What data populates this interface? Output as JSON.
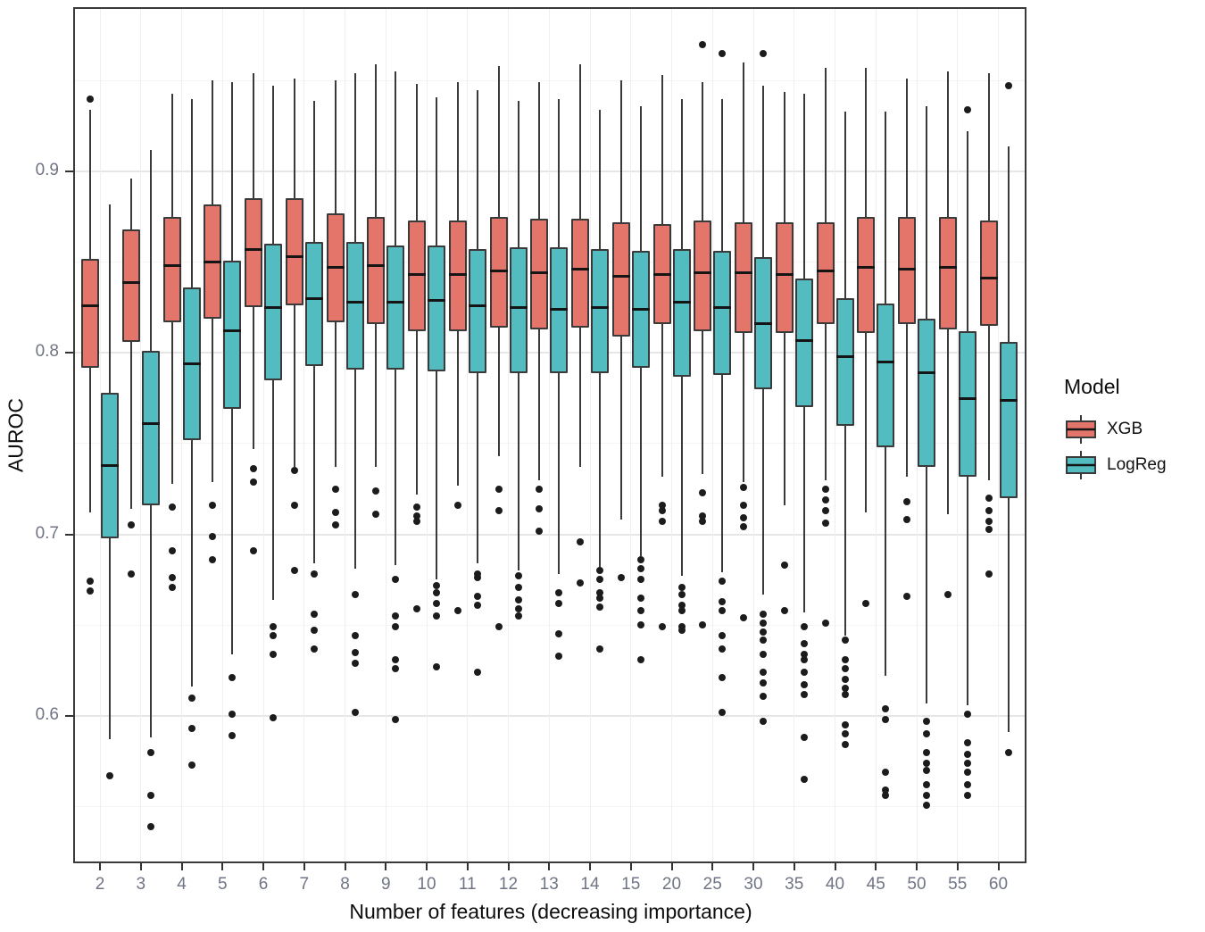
{
  "legend": {
    "title": "Model"
  },
  "colors": {
    "xgb_fill": "#E4756B",
    "logreg_fill": "#52BCC0",
    "box_border": "#3a3a3a",
    "median": "#151515",
    "outlier": "#1c1c1c",
    "grid_major": "#e6e6e6",
    "grid_minor": "#f4f4f4",
    "tick_text": "#6f7585",
    "title_text": "#0d0d0d"
  },
  "chart_data": {
    "type": "boxplot",
    "title": "",
    "xlabel": "Number of features (decreasing importance)",
    "ylabel": "AUROC",
    "ylim": [
      0.52,
      0.99
    ],
    "grid": true,
    "legend_position": "right",
    "y_major_ticks": [
      0.9,
      0.8,
      0.7,
      0.6
    ],
    "y_tick_labels": [
      "0.9",
      "0.8",
      "0.7",
      "0.6"
    ],
    "y_minor_gridlines": [
      0.95,
      0.85,
      0.75,
      0.65,
      0.55
    ],
    "categories": [
      "2",
      "3",
      "4",
      "5",
      "6",
      "7",
      "8",
      "9",
      "10",
      "11",
      "12",
      "13",
      "14",
      "15",
      "20",
      "25",
      "30",
      "35",
      "40",
      "45",
      "50",
      "55",
      "60"
    ],
    "series": [
      {
        "name": "XGB",
        "color": "#E4756B",
        "boxes": [
          {
            "lo": 0.712,
            "q1": 0.792,
            "med": 0.826,
            "q3": 0.852,
            "hi": 0.934,
            "out_lo": [
              0.674,
              0.669
            ],
            "out_hi": [
              0.94
            ]
          },
          {
            "lo": 0.714,
            "q1": 0.806,
            "med": 0.839,
            "q3": 0.868,
            "hi": 0.896,
            "out_lo": [
              0.705,
              0.678
            ],
            "out_hi": []
          },
          {
            "lo": 0.728,
            "q1": 0.817,
            "med": 0.848,
            "q3": 0.875,
            "hi": 0.943,
            "out_lo": [
              0.715,
              0.691,
              0.676,
              0.671
            ],
            "out_hi": []
          },
          {
            "lo": 0.729,
            "q1": 0.819,
            "med": 0.85,
            "q3": 0.882,
            "hi": 0.95,
            "out_lo": [
              0.716,
              0.699,
              0.686
            ],
            "out_hi": []
          },
          {
            "lo": 0.747,
            "q1": 0.825,
            "med": 0.857,
            "q3": 0.885,
            "hi": 0.954,
            "out_lo": [
              0.736,
              0.729,
              0.691
            ],
            "out_hi": []
          },
          {
            "lo": 0.737,
            "q1": 0.826,
            "med": 0.853,
            "q3": 0.885,
            "hi": 0.951,
            "out_lo": [
              0.735,
              0.716,
              0.68
            ],
            "out_hi": []
          },
          {
            "lo": 0.737,
            "q1": 0.817,
            "med": 0.847,
            "q3": 0.877,
            "hi": 0.95,
            "out_lo": [
              0.725,
              0.712,
              0.705
            ],
            "out_hi": []
          },
          {
            "lo": 0.737,
            "q1": 0.816,
            "med": 0.848,
            "q3": 0.875,
            "hi": 0.959,
            "out_lo": [
              0.724,
              0.711
            ],
            "out_hi": []
          },
          {
            "lo": 0.722,
            "q1": 0.812,
            "med": 0.843,
            "q3": 0.873,
            "hi": 0.948,
            "out_lo": [
              0.715,
              0.71,
              0.707,
              0.659
            ],
            "out_hi": []
          },
          {
            "lo": 0.727,
            "q1": 0.812,
            "med": 0.843,
            "q3": 0.873,
            "hi": 0.949,
            "out_lo": [
              0.716,
              0.658
            ],
            "out_hi": []
          },
          {
            "lo": 0.743,
            "q1": 0.814,
            "med": 0.845,
            "q3": 0.875,
            "hi": 0.958,
            "out_lo": [
              0.725,
              0.713,
              0.649
            ],
            "out_hi": []
          },
          {
            "lo": 0.73,
            "q1": 0.813,
            "med": 0.844,
            "q3": 0.874,
            "hi": 0.949,
            "out_lo": [
              0.725,
              0.714,
              0.702
            ],
            "out_hi": []
          },
          {
            "lo": 0.737,
            "q1": 0.814,
            "med": 0.846,
            "q3": 0.874,
            "hi": 0.959,
            "out_lo": [
              0.696,
              0.673
            ],
            "out_hi": []
          },
          {
            "lo": 0.708,
            "q1": 0.809,
            "med": 0.842,
            "q3": 0.872,
            "hi": 0.95,
            "out_lo": [
              0.676
            ],
            "out_hi": []
          },
          {
            "lo": 0.732,
            "q1": 0.816,
            "med": 0.843,
            "q3": 0.871,
            "hi": 0.953,
            "out_lo": [
              0.716,
              0.713,
              0.707,
              0.649
            ],
            "out_hi": []
          },
          {
            "lo": 0.733,
            "q1": 0.812,
            "med": 0.844,
            "q3": 0.873,
            "hi": 0.949,
            "out_lo": [
              0.723,
              0.71,
              0.707,
              0.65
            ],
            "out_hi": [
              0.97
            ]
          },
          {
            "lo": 0.729,
            "q1": 0.811,
            "med": 0.844,
            "q3": 0.872,
            "hi": 0.96,
            "out_lo": [
              0.726,
              0.716,
              0.709,
              0.704,
              0.654
            ],
            "out_hi": []
          },
          {
            "lo": 0.716,
            "q1": 0.811,
            "med": 0.843,
            "q3": 0.872,
            "hi": 0.944,
            "out_lo": [
              0.683,
              0.658
            ],
            "out_hi": []
          },
          {
            "lo": 0.73,
            "q1": 0.816,
            "med": 0.845,
            "q3": 0.872,
            "hi": 0.957,
            "out_lo": [
              0.725,
              0.719,
              0.713,
              0.706,
              0.651
            ],
            "out_hi": []
          },
          {
            "lo": 0.712,
            "q1": 0.811,
            "med": 0.847,
            "q3": 0.875,
            "hi": 0.957,
            "out_lo": [
              0.662
            ],
            "out_hi": []
          },
          {
            "lo": 0.732,
            "q1": 0.816,
            "med": 0.846,
            "q3": 0.875,
            "hi": 0.951,
            "out_lo": [
              0.718,
              0.708,
              0.666
            ],
            "out_hi": []
          },
          {
            "lo": 0.711,
            "q1": 0.813,
            "med": 0.847,
            "q3": 0.875,
            "hi": 0.955,
            "out_lo": [
              0.667
            ],
            "out_hi": []
          },
          {
            "lo": 0.73,
            "q1": 0.815,
            "med": 0.841,
            "q3": 0.873,
            "hi": 0.954,
            "out_lo": [
              0.72,
              0.713,
              0.707,
              0.703,
              0.678
            ],
            "out_hi": []
          }
        ]
      },
      {
        "name": "LogReg",
        "color": "#52BCC0",
        "boxes": [
          {
            "lo": 0.587,
            "q1": 0.698,
            "med": 0.738,
            "q3": 0.778,
            "hi": 0.882,
            "out_lo": [
              0.567
            ],
            "out_hi": []
          },
          {
            "lo": 0.588,
            "q1": 0.716,
            "med": 0.761,
            "q3": 0.801,
            "hi": 0.912,
            "out_lo": [
              0.58,
              0.556,
              0.539
            ],
            "out_hi": []
          },
          {
            "lo": 0.616,
            "q1": 0.752,
            "med": 0.794,
            "q3": 0.836,
            "hi": 0.94,
            "out_lo": [
              0.61,
              0.593,
              0.573
            ],
            "out_hi": []
          },
          {
            "lo": 0.634,
            "q1": 0.769,
            "med": 0.812,
            "q3": 0.851,
            "hi": 0.949,
            "out_lo": [
              0.621,
              0.601,
              0.589
            ],
            "out_hi": []
          },
          {
            "lo": 0.664,
            "q1": 0.785,
            "med": 0.825,
            "q3": 0.86,
            "hi": 0.947,
            "out_lo": [
              0.649,
              0.644,
              0.634,
              0.599
            ],
            "out_hi": []
          },
          {
            "lo": 0.684,
            "q1": 0.793,
            "med": 0.83,
            "q3": 0.861,
            "hi": 0.939,
            "out_lo": [
              0.678,
              0.656,
              0.647,
              0.637
            ],
            "out_hi": []
          },
          {
            "lo": 0.681,
            "q1": 0.791,
            "med": 0.828,
            "q3": 0.861,
            "hi": 0.954,
            "out_lo": [
              0.667,
              0.644,
              0.635,
              0.629,
              0.602
            ],
            "out_hi": []
          },
          {
            "lo": 0.683,
            "q1": 0.791,
            "med": 0.828,
            "q3": 0.859,
            "hi": 0.955,
            "out_lo": [
              0.675,
              0.655,
              0.649,
              0.631,
              0.626,
              0.598
            ],
            "out_hi": []
          },
          {
            "lo": 0.675,
            "q1": 0.79,
            "med": 0.829,
            "q3": 0.859,
            "hi": 0.941,
            "out_lo": [
              0.672,
              0.668,
              0.662,
              0.655,
              0.627
            ],
            "out_hi": []
          },
          {
            "lo": 0.684,
            "q1": 0.789,
            "med": 0.826,
            "q3": 0.857,
            "hi": 0.945,
            "out_lo": [
              0.678,
              0.676,
              0.666,
              0.661,
              0.624
            ],
            "out_hi": []
          },
          {
            "lo": 0.68,
            "q1": 0.789,
            "med": 0.825,
            "q3": 0.858,
            "hi": 0.939,
            "out_lo": [
              0.677,
              0.671,
              0.664,
              0.659,
              0.655
            ],
            "out_hi": []
          },
          {
            "lo": 0.678,
            "q1": 0.789,
            "med": 0.824,
            "q3": 0.858,
            "hi": 0.94,
            "out_lo": [
              0.668,
              0.662,
              0.645,
              0.633
            ],
            "out_hi": []
          },
          {
            "lo": 0.681,
            "q1": 0.789,
            "med": 0.825,
            "q3": 0.857,
            "hi": 0.934,
            "out_lo": [
              0.68,
              0.675,
              0.668,
              0.665,
              0.66,
              0.637
            ],
            "out_hi": []
          },
          {
            "lo": 0.688,
            "q1": 0.792,
            "med": 0.824,
            "q3": 0.856,
            "hi": 0.936,
            "out_lo": [
              0.686,
              0.681,
              0.675,
              0.665,
              0.658,
              0.65,
              0.631
            ],
            "out_hi": []
          },
          {
            "lo": 0.677,
            "q1": 0.787,
            "med": 0.828,
            "q3": 0.857,
            "hi": 0.94,
            "out_lo": [
              0.671,
              0.667,
              0.661,
              0.658,
              0.649,
              0.647
            ],
            "out_hi": []
          },
          {
            "lo": 0.679,
            "q1": 0.788,
            "med": 0.825,
            "q3": 0.856,
            "hi": 0.94,
            "out_lo": [
              0.674,
              0.663,
              0.658,
              0.644,
              0.637,
              0.621,
              0.602
            ],
            "out_hi": [
              0.965
            ]
          },
          {
            "lo": 0.667,
            "q1": 0.78,
            "med": 0.816,
            "q3": 0.853,
            "hi": 0.947,
            "out_lo": [
              0.656,
              0.651,
              0.646,
              0.642,
              0.634,
              0.624,
              0.618,
              0.611,
              0.597
            ],
            "out_hi": [
              0.965
            ]
          },
          {
            "lo": 0.657,
            "q1": 0.77,
            "med": 0.807,
            "q3": 0.841,
            "hi": 0.943,
            "out_lo": [
              0.649,
              0.64,
              0.634,
              0.631,
              0.624,
              0.617,
              0.612,
              0.588,
              0.565
            ],
            "out_hi": []
          },
          {
            "lo": 0.644,
            "q1": 0.76,
            "med": 0.798,
            "q3": 0.83,
            "hi": 0.933,
            "out_lo": [
              0.642,
              0.631,
              0.626,
              0.62,
              0.615,
              0.612,
              0.595,
              0.59,
              0.584
            ],
            "out_hi": []
          },
          {
            "lo": 0.622,
            "q1": 0.748,
            "med": 0.795,
            "q3": 0.827,
            "hi": 0.933,
            "out_lo": [
              0.604,
              0.598,
              0.569,
              0.559,
              0.556
            ],
            "out_hi": []
          },
          {
            "lo": 0.607,
            "q1": 0.737,
            "med": 0.789,
            "q3": 0.819,
            "hi": 0.936,
            "out_lo": [
              0.597,
              0.59,
              0.58,
              0.574,
              0.57,
              0.562,
              0.556,
              0.551
            ],
            "out_hi": []
          },
          {
            "lo": 0.606,
            "q1": 0.732,
            "med": 0.775,
            "q3": 0.812,
            "hi": 0.922,
            "out_lo": [
              0.601,
              0.585,
              0.579,
              0.574,
              0.569,
              0.562,
              0.556
            ],
            "out_hi": [
              0.934
            ]
          },
          {
            "lo": 0.591,
            "q1": 0.72,
            "med": 0.774,
            "q3": 0.806,
            "hi": 0.914,
            "out_lo": [
              0.58
            ],
            "out_hi": [
              0.947
            ]
          }
        ]
      }
    ]
  }
}
